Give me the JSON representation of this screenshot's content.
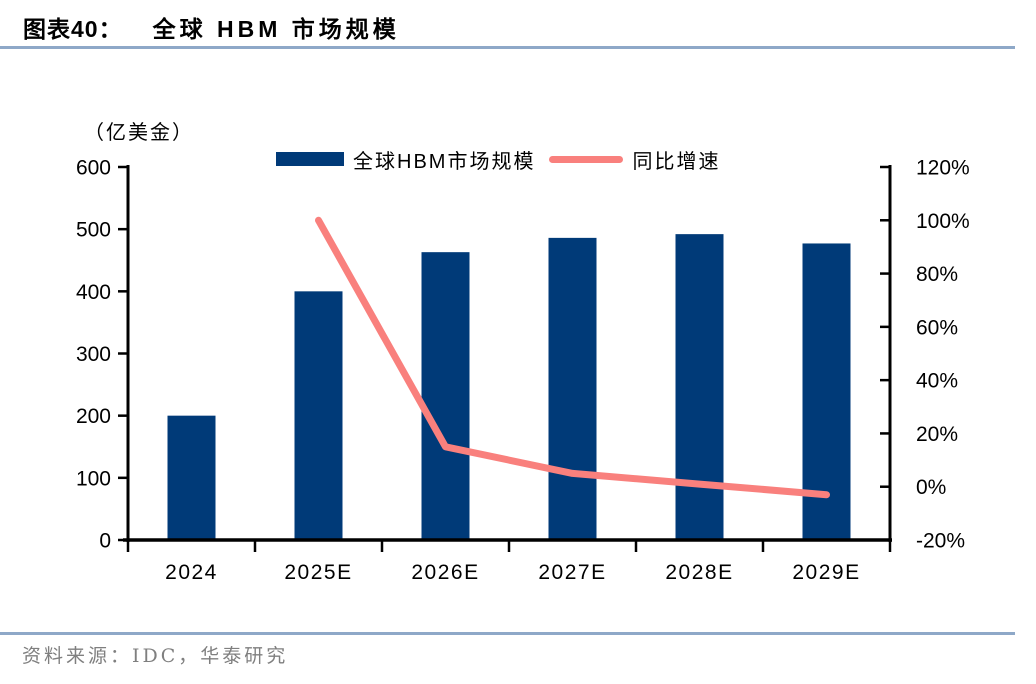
{
  "figure": {
    "label": "图表40：",
    "title": "全球 HBM 市场规模",
    "source": "资料来源：IDC，华泰研究"
  },
  "colors": {
    "divider": "#8ea8c8",
    "source_text": "#7f7f7f",
    "axis": "#000000"
  },
  "chart_data": {
    "type": "bar",
    "title": "全球 HBM 市场规模",
    "unit_label": "（亿美金）",
    "categories": [
      "2024",
      "2025E",
      "2026E",
      "2027E",
      "2028E",
      "2029E"
    ],
    "series": [
      {
        "name": "全球HBM市场规模",
        "type": "bar",
        "axis": "left",
        "values": [
          200,
          400,
          463,
          486,
          492,
          477
        ]
      },
      {
        "name": "同比增速",
        "type": "line",
        "axis": "right",
        "unit": "%",
        "values": [
          null,
          100,
          15,
          5,
          1,
          -3
        ]
      }
    ],
    "left_axis": {
      "min": 0,
      "max": 600,
      "step": 100,
      "tick_labels": [
        "600",
        "500",
        "400",
        "300",
        "200",
        "100",
        "0"
      ]
    },
    "right_axis": {
      "min": -20,
      "max": 120,
      "step": 20,
      "tick_labels": [
        "120%",
        "100%",
        "80%",
        "60%",
        "40%",
        "20%",
        "0%",
        "-20%"
      ]
    },
    "legend_position": "top",
    "grid": false,
    "colors": {
      "bar": "#003a78",
      "line": "#f9807d"
    }
  }
}
